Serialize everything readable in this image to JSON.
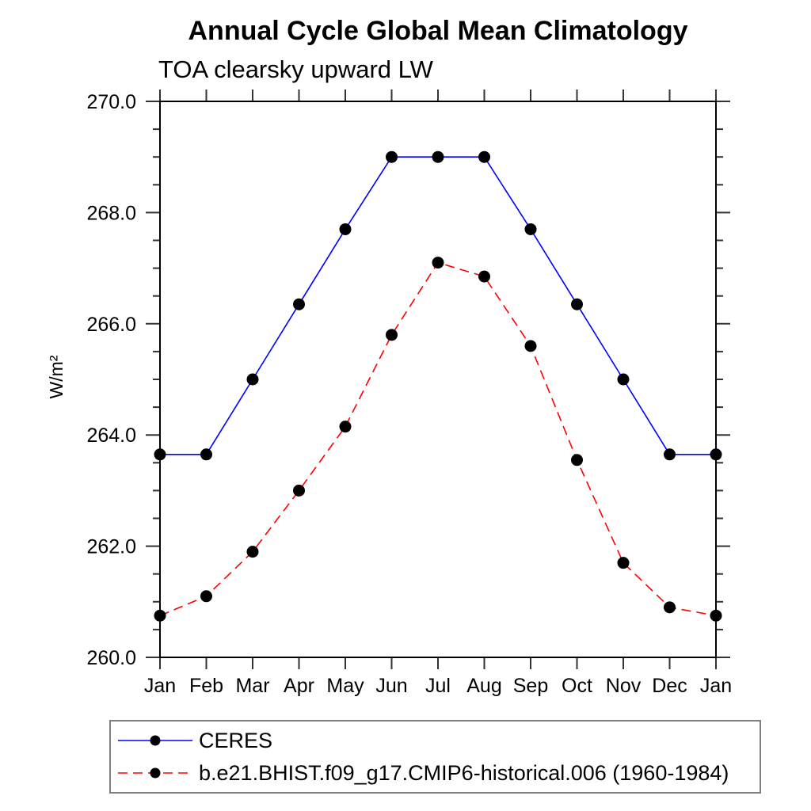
{
  "chart_data": {
    "type": "line",
    "title": "Annual Cycle Global Mean Climatology",
    "subtitle": "TOA clearsky upward LW",
    "ylabel": "W/m²",
    "xlabel": "",
    "categories": [
      "Jan",
      "Feb",
      "Mar",
      "Apr",
      "May",
      "Jun",
      "Jul",
      "Aug",
      "Sep",
      "Oct",
      "Nov",
      "Dec",
      "Jan"
    ],
    "ylim": [
      260.0,
      270.0
    ],
    "ytick_major_interval": 2.0,
    "ytick_minor_interval": 0.5,
    "ytick_labels": [
      "260.0",
      "262.0",
      "264.0",
      "266.0",
      "268.0",
      "270.0"
    ],
    "grid": false,
    "legend_position": "bottom-left",
    "axis_color": "#000000",
    "tick_color": "#333333",
    "series": [
      {
        "name": "CERES",
        "color": "#0000ff",
        "line_style": "solid",
        "marker": "filled-circle",
        "marker_color": "#000000",
        "values": [
          263.65,
          263.65,
          265.0,
          266.35,
          267.7,
          269.0,
          269.0,
          269.0,
          267.7,
          266.35,
          265.0,
          263.65,
          263.65
        ]
      },
      {
        "name": "b.e21.BHIST.f09_g17.CMIP6-historical.006 (1960-1984)",
        "color": "#ff0000",
        "line_style": "dashed",
        "marker": "filled-circle",
        "marker_color": "#000000",
        "values": [
          260.75,
          261.1,
          261.9,
          263.0,
          264.15,
          265.8,
          267.1,
          266.85,
          265.6,
          263.55,
          261.7,
          260.9,
          260.75
        ]
      }
    ]
  }
}
